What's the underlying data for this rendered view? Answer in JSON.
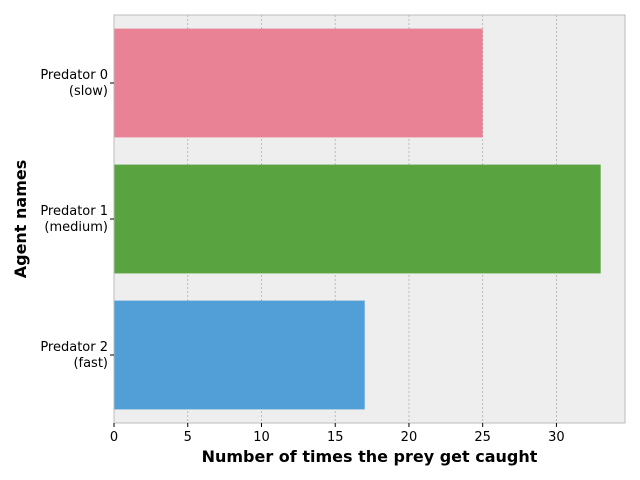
{
  "chart_data": {
    "type": "bar",
    "orientation": "horizontal",
    "categories": [
      [
        "Predator 0",
        "(slow)"
      ],
      [
        "Predator 1",
        "(medium)"
      ],
      [
        "Predator 2",
        "(fast)"
      ]
    ],
    "values": [
      25,
      33,
      17
    ],
    "bar_colors": [
      "#e88294",
      "#59a341",
      "#519fd6"
    ],
    "xlabel": "Number of times the prey get caught",
    "ylabel": "Agent names",
    "xlim": [
      0,
      34.65
    ],
    "xticks": [
      0,
      5,
      10,
      15,
      20,
      25,
      30
    ],
    "grid": "x",
    "background": "#eeeeee",
    "grid_color": "#b0b0b0"
  }
}
